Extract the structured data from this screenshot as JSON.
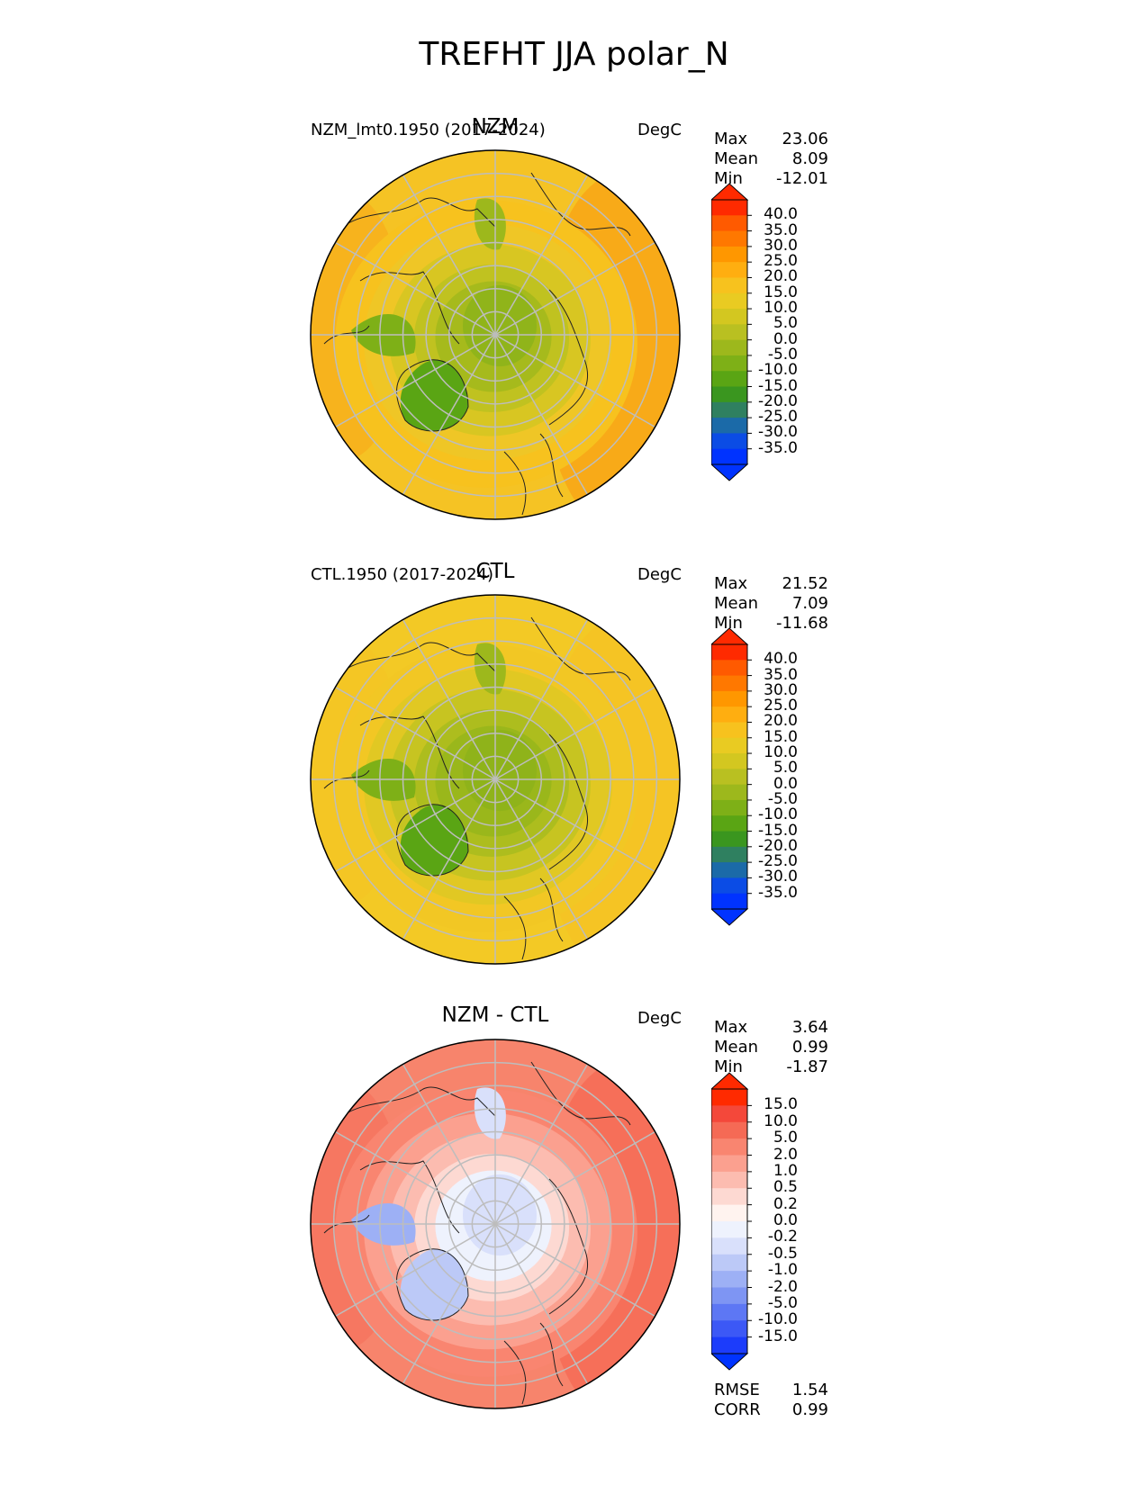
{
  "figure": {
    "title": "TREFHT JJA polar_N"
  },
  "panels": [
    {
      "title": "NZM",
      "case": "NZM_lmt0.1950 (2017-2024)",
      "units": "DegC",
      "stats": [
        {
          "label": "Max",
          "value": "23.06"
        },
        {
          "label": "Mean",
          "value": "8.09"
        },
        {
          "label": "Min",
          "value": "-12.01"
        }
      ],
      "colorbar": {
        "ticks": [
          "40.0",
          "35.0",
          "30.0",
          "25.0",
          "20.0",
          "15.0",
          "10.0",
          "5.0",
          "0.0",
          "-5.0",
          "-10.0",
          "-15.0",
          "-20.0",
          "-25.0",
          "-30.0",
          "-35.0"
        ],
        "colors": [
          "#ff2a00",
          "#ff5a00",
          "#ff7800",
          "#ff9700",
          "#ffae10",
          "#f7c21e",
          "#e9cb22",
          "#d3c720",
          "#b9c021",
          "#9db81c",
          "#7eb017",
          "#5aa514",
          "#3a961f",
          "#2f8060",
          "#1b6aa8",
          "#0b4ce5",
          "#0033ff"
        ],
        "over": "#ff2a00",
        "under": "#0033ff"
      }
    },
    {
      "title": "CTL",
      "case": "CTL.1950 (2017-2024)",
      "units": "DegC",
      "stats": [
        {
          "label": "Max",
          "value": "21.52"
        },
        {
          "label": "Mean",
          "value": "7.09"
        },
        {
          "label": "Min",
          "value": "-11.68"
        }
      ],
      "colorbar": {
        "ticks": [
          "40.0",
          "35.0",
          "30.0",
          "25.0",
          "20.0",
          "15.0",
          "10.0",
          "5.0",
          "0.0",
          "-5.0",
          "-10.0",
          "-15.0",
          "-20.0",
          "-25.0",
          "-30.0",
          "-35.0"
        ],
        "colors": [
          "#ff2a00",
          "#ff5a00",
          "#ff7800",
          "#ff9700",
          "#ffae10",
          "#f7c21e",
          "#e9cb22",
          "#d3c720",
          "#b9c021",
          "#9db81c",
          "#7eb017",
          "#5aa514",
          "#3a961f",
          "#2f8060",
          "#1b6aa8",
          "#0b4ce5",
          "#0033ff"
        ],
        "over": "#ff2a00",
        "under": "#0033ff"
      }
    },
    {
      "title": "NZM - CTL",
      "case": "",
      "units": "DegC",
      "stats": [
        {
          "label": "Max",
          "value": "3.64"
        },
        {
          "label": "Mean",
          "value": "0.99"
        },
        {
          "label": "Min",
          "value": "-1.87"
        }
      ],
      "extra_stats": [
        {
          "label": "RMSE",
          "value": "1.54"
        },
        {
          "label": "CORR",
          "value": "0.99"
        }
      ],
      "colorbar": {
        "ticks": [
          "15.0",
          "10.0",
          "5.0",
          "2.0",
          "1.0",
          "0.5",
          "0.2",
          "0.0",
          "-0.2",
          "-0.5",
          "-1.0",
          "-2.0",
          "-5.0",
          "-10.0",
          "-15.0"
        ],
        "colors": [
          "#ff2a00",
          "#f4483a",
          "#f56a55",
          "#f98570",
          "#fba08f",
          "#fcbcb0",
          "#fdd9d2",
          "#fff3ef",
          "#eef2fd",
          "#d9e0fb",
          "#bcc9f7",
          "#9db0f5",
          "#7e95f3",
          "#5d77f4",
          "#3c58f6",
          "#1c3cfb"
        ],
        "over": "#ff2a00",
        "under": "#0033ff"
      }
    }
  ],
  "chart_data": [
    {
      "type": "heatmap",
      "title": "NZM",
      "projection": "north polar stereographic",
      "variable": "TREFHT",
      "season": "JJA",
      "units": "DegC",
      "max": 23.06,
      "mean": 8.09,
      "min": -12.01,
      "contour_levels": [
        -35,
        -30,
        -25,
        -20,
        -15,
        -10,
        -5,
        0,
        5,
        10,
        15,
        20,
        25,
        30,
        35,
        40
      ]
    },
    {
      "type": "heatmap",
      "title": "CTL",
      "projection": "north polar stereographic",
      "variable": "TREFHT",
      "season": "JJA",
      "units": "DegC",
      "max": 21.52,
      "mean": 7.09,
      "min": -11.68,
      "contour_levels": [
        -35,
        -30,
        -25,
        -20,
        -15,
        -10,
        -5,
        0,
        5,
        10,
        15,
        20,
        25,
        30,
        35,
        40
      ]
    },
    {
      "type": "heatmap",
      "title": "NZM - CTL",
      "projection": "north polar stereographic",
      "units": "DegC",
      "max": 3.64,
      "mean": 0.99,
      "min": -1.87,
      "rmse": 1.54,
      "corr": 0.99,
      "contour_levels": [
        -15,
        -10,
        -5,
        -2,
        -1,
        -0.5,
        -0.2,
        0,
        0.2,
        0.5,
        1,
        2,
        5,
        10,
        15
      ]
    }
  ]
}
